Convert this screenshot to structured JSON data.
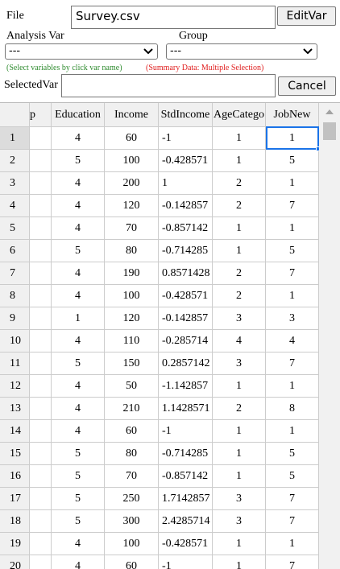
{
  "form": {
    "file_label": "File",
    "file_value": "Survey.csv",
    "edit_button": "EditVar",
    "analysis_label": "Analysis Var",
    "analysis_value": "---",
    "group_label": "Group",
    "group_value": "---",
    "hint_select": "(Select variables by click var name)",
    "hint_summary": "(Summary Data: Multiple Selection)",
    "selected_label": "SelectedVar",
    "cancel_button": "Cancel"
  },
  "table": {
    "columns": [
      "p",
      "Education",
      "Income",
      "StdIncome",
      "AgeCatego",
      "JobNew"
    ],
    "rows": [
      [
        1,
        4,
        60,
        -1,
        1,
        1
      ],
      [
        2,
        5,
        100,
        -0.428571,
        1,
        5
      ],
      [
        3,
        4,
        200,
        1,
        2,
        1
      ],
      [
        4,
        4,
        120,
        -0.142857,
        2,
        7
      ],
      [
        5,
        4,
        70,
        -0.857142,
        1,
        1
      ],
      [
        6,
        5,
        80,
        -0.714285,
        1,
        5
      ],
      [
        7,
        4,
        190,
        0.8571428,
        2,
        7
      ],
      [
        8,
        4,
        100,
        -0.428571,
        2,
        1
      ],
      [
        9,
        1,
        120,
        -0.142857,
        3,
        3
      ],
      [
        10,
        4,
        110,
        -0.285714,
        4,
        4
      ],
      [
        11,
        5,
        150,
        0.2857142,
        3,
        7
      ],
      [
        12,
        4,
        50,
        -1.142857,
        1,
        1
      ],
      [
        13,
        4,
        210,
        1.1428571,
        2,
        8
      ],
      [
        14,
        4,
        60,
        -1,
        1,
        1
      ],
      [
        15,
        5,
        80,
        -0.714285,
        1,
        5
      ],
      [
        16,
        5,
        70,
        -0.857142,
        1,
        5
      ],
      [
        17,
        5,
        250,
        1.7142857,
        3,
        7
      ],
      [
        18,
        5,
        300,
        2.4285714,
        3,
        7
      ],
      [
        19,
        4,
        100,
        -0.428571,
        1,
        1
      ],
      [
        20,
        4,
        60,
        -1,
        1,
        7
      ]
    ]
  }
}
